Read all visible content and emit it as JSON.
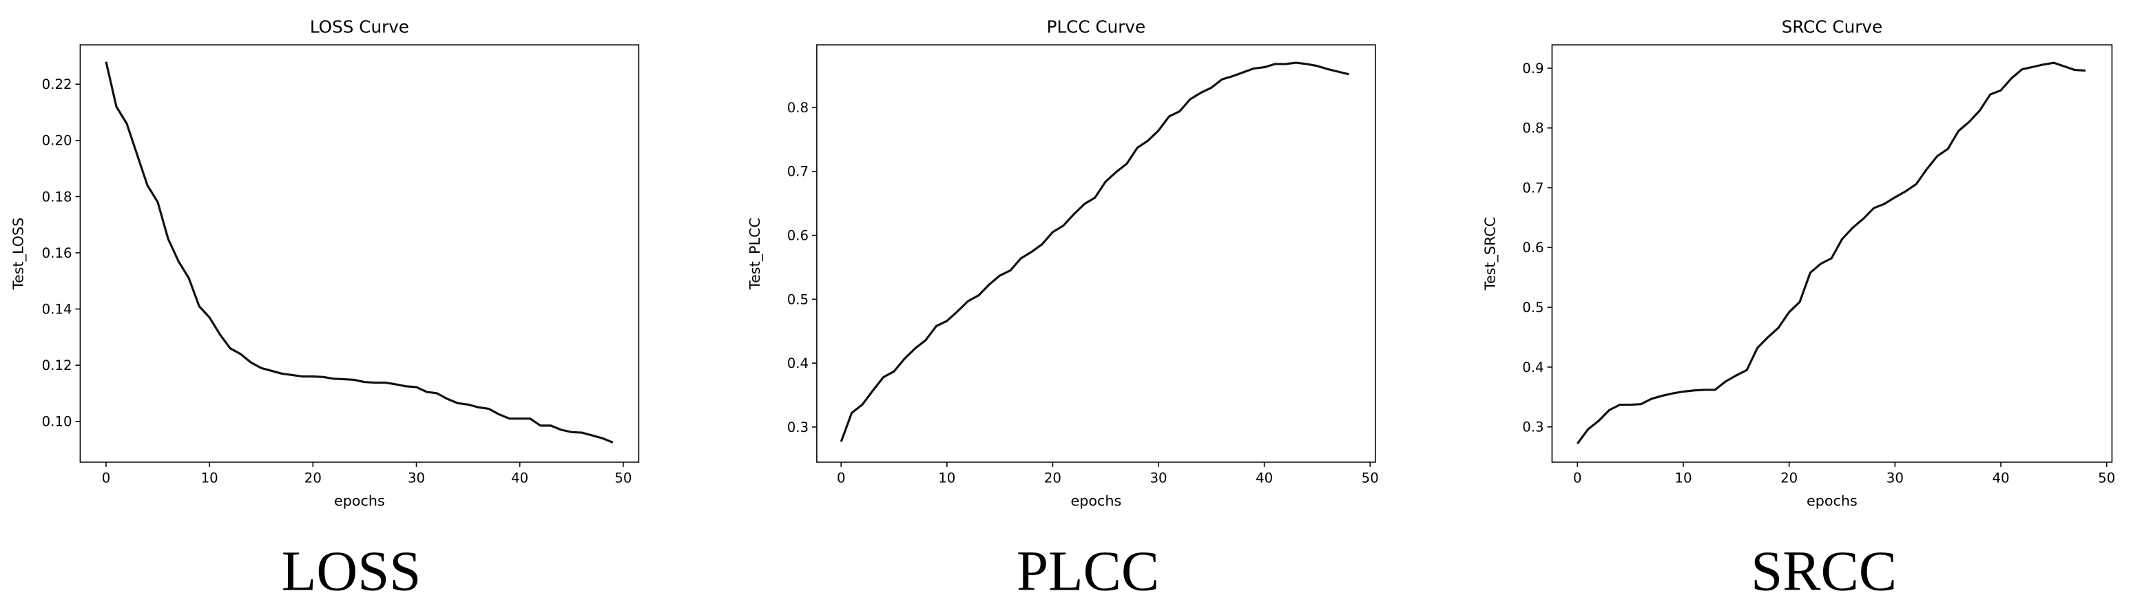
{
  "chart_data": [
    {
      "type": "line",
      "title": "LOSS Curve",
      "x_label": "epochs",
      "y_label": "Test_LOSS",
      "caption": "LOSS",
      "x": [
        0,
        1,
        2,
        3,
        4,
        5,
        6,
        7,
        8,
        9,
        10,
        11,
        12,
        13,
        14,
        15,
        16,
        17,
        18,
        19,
        20,
        21,
        22,
        23,
        24,
        25,
        26,
        27,
        28,
        29,
        30,
        31,
        32,
        33,
        34,
        35,
        36,
        37,
        38,
        39,
        40,
        41,
        42,
        43,
        44,
        45,
        46,
        47,
        48,
        49
      ],
      "series": [
        {
          "name": "Test_LOSS",
          "color": "#111111",
          "values": [
            0.228,
            0.212,
            0.206,
            0.195,
            0.184,
            0.178,
            0.165,
            0.157,
            0.151,
            0.141,
            0.137,
            0.131,
            0.126,
            0.124,
            0.121,
            0.119,
            0.118,
            0.117,
            0.1165,
            0.116,
            0.116,
            0.1158,
            0.1152,
            0.115,
            0.1148,
            0.114,
            0.1138,
            0.1138,
            0.1132,
            0.1125,
            0.1122,
            0.1105,
            0.11,
            0.108,
            0.1065,
            0.106,
            0.105,
            0.1045,
            0.1025,
            0.101,
            0.101,
            0.101,
            0.0985,
            0.0985,
            0.097,
            0.0962,
            0.096,
            0.095,
            0.094,
            0.0925
          ]
        }
      ],
      "xlim": [
        -2.5,
        51.5
      ],
      "xticks": [
        0,
        10,
        20,
        30,
        40,
        50
      ],
      "ylim": [
        0.0855,
        0.234
      ],
      "yticks": [
        {
          "value": 0.1,
          "label": "0.10"
        },
        0.12,
        0.14,
        0.16,
        0.18,
        {
          "value": 0.2,
          "label": "0.20"
        },
        0.22
      ]
    },
    {
      "type": "line",
      "title": "PLCC Curve",
      "x_label": "epochs",
      "y_label": "Test_PLCC",
      "caption": "PLCC",
      "x": [
        0,
        1,
        2,
        3,
        4,
        5,
        6,
        7,
        8,
        9,
        10,
        11,
        12,
        13,
        14,
        15,
        16,
        17,
        18,
        19,
        20,
        21,
        22,
        23,
        24,
        25,
        26,
        27,
        28,
        29,
        30,
        31,
        32,
        33,
        34,
        35,
        36,
        37,
        38,
        39,
        40,
        41,
        42,
        43,
        44,
        45,
        46,
        47,
        48
      ],
      "series": [
        {
          "name": "Test_PLCC",
          "color": "#111111",
          "values": [
            0.277,
            0.322,
            0.335,
            0.357,
            0.378,
            0.387,
            0.407,
            0.423,
            0.436,
            0.458,
            0.466,
            0.481,
            0.497,
            0.506,
            0.523,
            0.537,
            0.545,
            0.564,
            0.574,
            0.586,
            0.605,
            0.615,
            0.633,
            0.649,
            0.659,
            0.684,
            0.699,
            0.712,
            0.737,
            0.748,
            0.764,
            0.786,
            0.794,
            0.813,
            0.823,
            0.831,
            0.844,
            0.849,
            0.855,
            0.861,
            0.863,
            0.868,
            0.868,
            0.87,
            0.868,
            0.865,
            0.86,
            0.856,
            0.852
          ]
        }
      ],
      "xlim": [
        -2.3,
        50.5
      ],
      "xticks": [
        0,
        10,
        20,
        30,
        40,
        50
      ],
      "ylim": [
        0.245,
        0.898
      ],
      "yticks": [
        0.3,
        0.4,
        0.5,
        0.6,
        0.7,
        0.8
      ]
    },
    {
      "type": "line",
      "title": "SRCC Curve",
      "x_label": "epochs",
      "y_label": "Test_SRCC",
      "caption": "SRCC",
      "x": [
        0,
        1,
        2,
        3,
        4,
        5,
        6,
        7,
        8,
        9,
        10,
        11,
        12,
        13,
        14,
        15,
        16,
        17,
        18,
        19,
        20,
        21,
        22,
        23,
        24,
        25,
        26,
        27,
        28,
        29,
        30,
        31,
        32,
        33,
        34,
        35,
        36,
        37,
        38,
        39,
        40,
        41,
        42,
        43,
        44,
        45,
        46,
        47,
        48
      ],
      "series": [
        {
          "name": "Test_SRCC",
          "color": "#111111",
          "values": [
            0.272,
            0.296,
            0.31,
            0.328,
            0.337,
            0.337,
            0.338,
            0.347,
            0.352,
            0.356,
            0.359,
            0.361,
            0.362,
            0.362,
            0.376,
            0.386,
            0.395,
            0.432,
            0.45,
            0.466,
            0.492,
            0.509,
            0.558,
            0.573,
            0.582,
            0.614,
            0.633,
            0.648,
            0.666,
            0.673,
            0.684,
            0.694,
            0.706,
            0.731,
            0.753,
            0.765,
            0.795,
            0.81,
            0.829,
            0.856,
            0.863,
            0.883,
            0.898,
            0.902,
            0.906,
            0.909,
            0.903,
            0.897,
            0.896
          ]
        }
      ],
      "xlim": [
        -2.4,
        50.5
      ],
      "xticks": [
        0,
        10,
        20,
        30,
        40,
        50
      ],
      "ylim": [
        0.241,
        0.939
      ],
      "yticks": [
        0.3,
        0.4,
        0.5,
        0.6,
        0.7,
        0.8,
        0.9
      ]
    }
  ]
}
